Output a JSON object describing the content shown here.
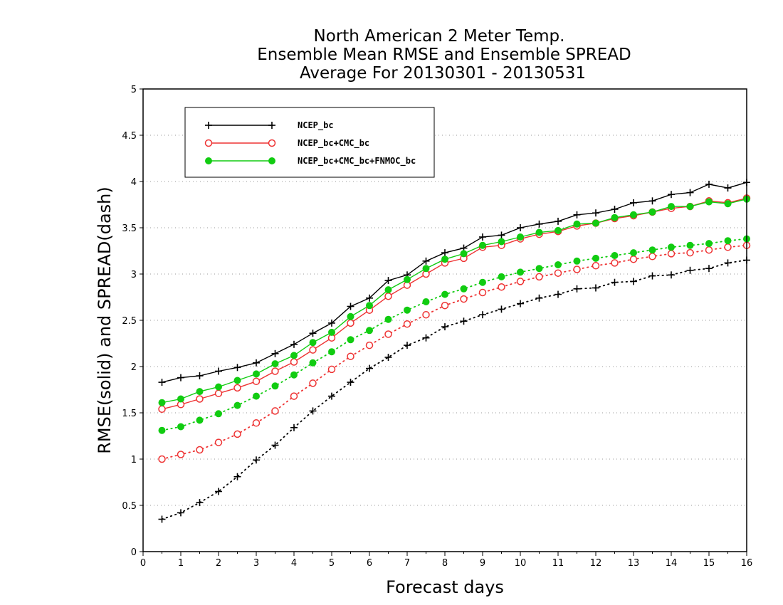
{
  "chart_data": {
    "type": "line",
    "title": [
      "North American 2 Meter Temp.",
      "Ensemble Mean RMSE and Ensemble SPREAD",
      "Average For 20130301 - 20130531"
    ],
    "xlabel": "Forecast days",
    "ylabel": "RMSE(solid) and SPREAD(dash)",
    "xlim": [
      0,
      16
    ],
    "ylim": [
      0,
      5
    ],
    "x_ticks": [
      "0",
      "1",
      "2",
      "3",
      "4",
      "5",
      "6",
      "7",
      "8",
      "9",
      "10",
      "11",
      "12",
      "13",
      "14",
      "15",
      "16"
    ],
    "y_ticks": [
      "0",
      "0.5",
      "1",
      "1.5",
      "2",
      "2.5",
      "3",
      "3.5",
      "4",
      "4.5",
      "5"
    ],
    "grid": "horizontal dotted",
    "legend_position": "top-left",
    "x": [
      0.5,
      1,
      1.5,
      2,
      2.5,
      3,
      3.5,
      4,
      4.5,
      5,
      5.5,
      6,
      6.5,
      7,
      7.5,
      8,
      8.5,
      9,
      9.5,
      10,
      10.5,
      11,
      11.5,
      12,
      12.5,
      13,
      13.5,
      14,
      14.5,
      15,
      15.5,
      16
    ],
    "series": [
      {
        "name": "NCEP_bc",
        "color": "#000000",
        "marker": "plus",
        "rmse": [
          1.83,
          1.88,
          1.9,
          1.95,
          1.99,
          2.04,
          2.14,
          2.24,
          2.36,
          2.47,
          2.65,
          2.74,
          2.93,
          2.99,
          3.14,
          3.23,
          3.28,
          3.4,
          3.42,
          3.5,
          3.54,
          3.57,
          3.64,
          3.66,
          3.7,
          3.77,
          3.79,
          3.86,
          3.88,
          3.97,
          3.93,
          3.99
        ],
        "spread": [
          0.35,
          0.42,
          0.53,
          0.65,
          0.81,
          0.99,
          1.15,
          1.34,
          1.52,
          1.68,
          1.83,
          1.98,
          2.1,
          2.23,
          2.31,
          2.43,
          2.49,
          2.56,
          2.62,
          2.68,
          2.74,
          2.78,
          2.84,
          2.85,
          2.91,
          2.92,
          2.98,
          2.99,
          3.04,
          3.06,
          3.12,
          3.15
        ]
      },
      {
        "name": "NCEP_bc+CMC_bc",
        "color": "#ee3333",
        "marker": "open-circle",
        "rmse": [
          1.54,
          1.59,
          1.65,
          1.71,
          1.77,
          1.84,
          1.95,
          2.05,
          2.18,
          2.31,
          2.47,
          2.61,
          2.76,
          2.88,
          3.0,
          3.12,
          3.17,
          3.29,
          3.31,
          3.38,
          3.43,
          3.46,
          3.52,
          3.55,
          3.6,
          3.63,
          3.67,
          3.71,
          3.73,
          3.79,
          3.77,
          3.82
        ],
        "spread": [
          1.0,
          1.05,
          1.1,
          1.18,
          1.27,
          1.39,
          1.52,
          1.68,
          1.82,
          1.97,
          2.11,
          2.23,
          2.35,
          2.46,
          2.56,
          2.66,
          2.73,
          2.8,
          2.86,
          2.92,
          2.97,
          3.01,
          3.05,
          3.09,
          3.12,
          3.16,
          3.19,
          3.22,
          3.23,
          3.26,
          3.29,
          3.31
        ]
      },
      {
        "name": "NCEP_bc+CMC_bc+FNMOC_bc",
        "color": "#11cc11",
        "marker": "filled-circle",
        "rmse": [
          1.61,
          1.65,
          1.73,
          1.78,
          1.85,
          1.92,
          2.03,
          2.12,
          2.26,
          2.37,
          2.54,
          2.66,
          2.83,
          2.94,
          3.06,
          3.16,
          3.22,
          3.31,
          3.35,
          3.4,
          3.45,
          3.47,
          3.54,
          3.55,
          3.61,
          3.64,
          3.67,
          3.73,
          3.73,
          3.78,
          3.76,
          3.81
        ],
        "spread": [
          1.31,
          1.35,
          1.42,
          1.49,
          1.58,
          1.68,
          1.79,
          1.91,
          2.04,
          2.16,
          2.29,
          2.39,
          2.51,
          2.61,
          2.7,
          2.78,
          2.84,
          2.91,
          2.97,
          3.02,
          3.06,
          3.1,
          3.14,
          3.17,
          3.2,
          3.23,
          3.26,
          3.29,
          3.31,
          3.33,
          3.36,
          3.38
        ]
      }
    ]
  }
}
